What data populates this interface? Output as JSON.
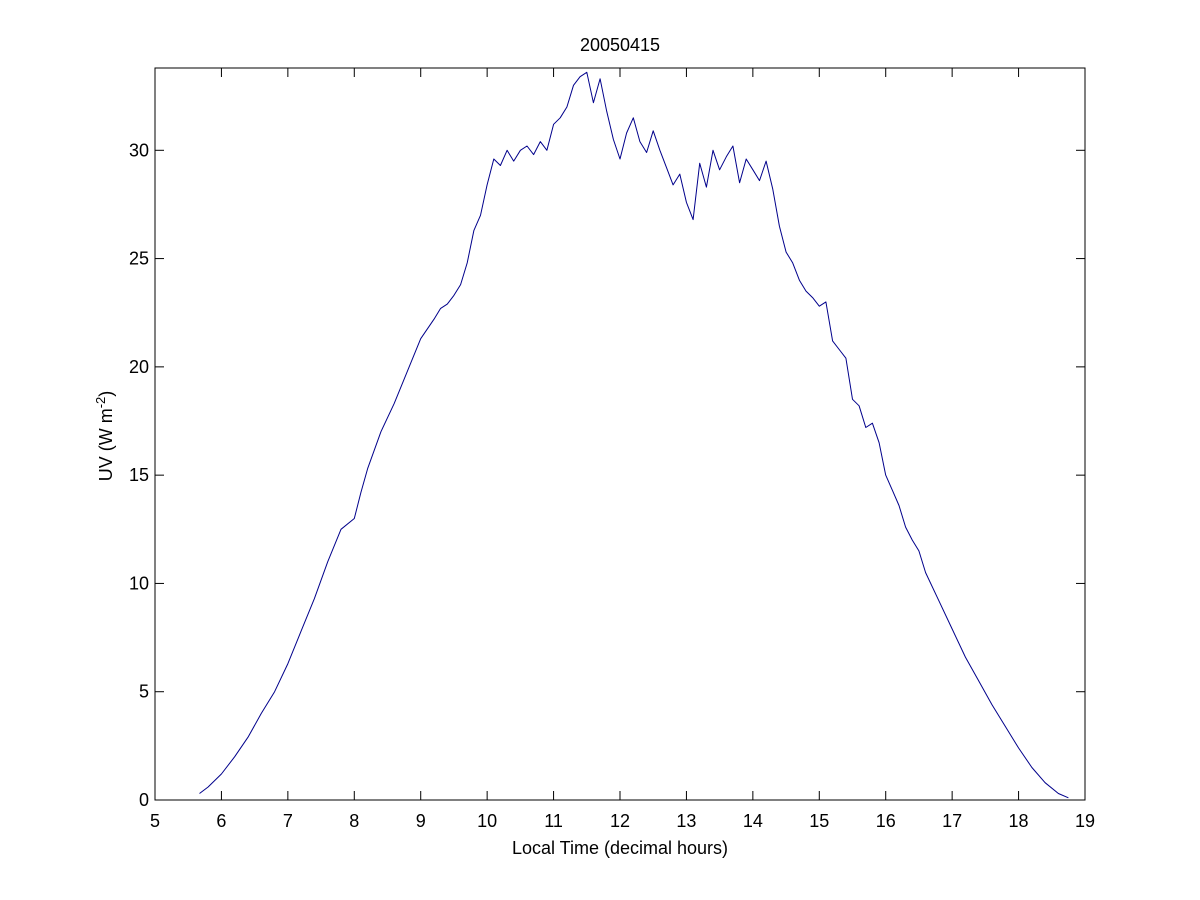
{
  "chart_data": {
    "type": "line",
    "title": "20050415",
    "xlabel": "Local Time (decimal hours)",
    "ylabel_main": "UV (W m",
    "ylabel_sup": "-2",
    "ylabel_close": ")",
    "xlim": [
      5,
      19
    ],
    "ylim": [
      0,
      33.8
    ],
    "xticks": [
      5,
      6,
      7,
      8,
      9,
      10,
      11,
      12,
      13,
      14,
      15,
      16,
      17,
      18,
      19
    ],
    "yticks": [
      0,
      5,
      10,
      15,
      20,
      25,
      30
    ],
    "grid": false,
    "series": [
      {
        "color": "#00008b",
        "x": [
          5.67,
          5.8,
          6.0,
          6.2,
          6.4,
          6.6,
          6.8,
          7.0,
          7.2,
          7.4,
          7.6,
          7.8,
          8.0,
          8.05,
          8.1,
          8.2,
          8.4,
          8.6,
          8.8,
          9.0,
          9.2,
          9.3,
          9.4,
          9.5,
          9.6,
          9.7,
          9.8,
          9.9,
          10.0,
          10.1,
          10.2,
          10.3,
          10.4,
          10.5,
          10.6,
          10.7,
          10.8,
          10.9,
          11.0,
          11.1,
          11.2,
          11.3,
          11.4,
          11.5,
          11.6,
          11.7,
          11.8,
          11.9,
          12.0,
          12.1,
          12.2,
          12.3,
          12.4,
          12.5,
          12.6,
          12.7,
          12.8,
          12.9,
          13.0,
          13.1,
          13.2,
          13.3,
          13.4,
          13.5,
          13.6,
          13.7,
          13.8,
          13.9,
          14.0,
          14.1,
          14.2,
          14.3,
          14.4,
          14.5,
          14.6,
          14.7,
          14.8,
          14.9,
          15.0,
          15.1,
          15.2,
          15.3,
          15.4,
          15.5,
          15.6,
          15.7,
          15.8,
          15.9,
          16.0,
          16.1,
          16.2,
          16.3,
          16.4,
          16.5,
          16.6,
          16.8,
          17.0,
          17.2,
          17.4,
          17.6,
          17.8,
          18.0,
          18.2,
          18.4,
          18.6,
          18.75
        ],
        "y": [
          0.3,
          0.6,
          1.2,
          2.0,
          2.9,
          4.0,
          5.0,
          6.3,
          7.8,
          9.3,
          11.0,
          12.5,
          13.0,
          13.6,
          14.2,
          15.3,
          17.0,
          18.3,
          19.8,
          21.3,
          22.2,
          22.7,
          22.9,
          23.3,
          23.8,
          24.8,
          26.3,
          27.0,
          28.4,
          29.6,
          29.3,
          30.0,
          29.5,
          30.0,
          30.2,
          29.8,
          30.4,
          30.0,
          31.2,
          31.5,
          32.0,
          33.0,
          33.4,
          33.6,
          32.2,
          33.3,
          31.8,
          30.5,
          29.6,
          30.8,
          31.5,
          30.4,
          29.9,
          30.9,
          30.0,
          29.2,
          28.4,
          28.9,
          27.6,
          26.8,
          29.4,
          28.3,
          30.0,
          29.1,
          29.7,
          30.2,
          28.5,
          29.6,
          29.1,
          28.6,
          29.5,
          28.2,
          26.5,
          25.3,
          24.8,
          24.0,
          23.5,
          23.2,
          22.8,
          23.0,
          21.2,
          20.8,
          20.4,
          18.5,
          18.2,
          17.2,
          17.4,
          16.5,
          15.0,
          14.3,
          13.6,
          12.6,
          12.0,
          11.5,
          10.5,
          9.2,
          7.9,
          6.6,
          5.5,
          4.4,
          3.4,
          2.4,
          1.5,
          0.8,
          0.3,
          0.1
        ]
      }
    ]
  }
}
